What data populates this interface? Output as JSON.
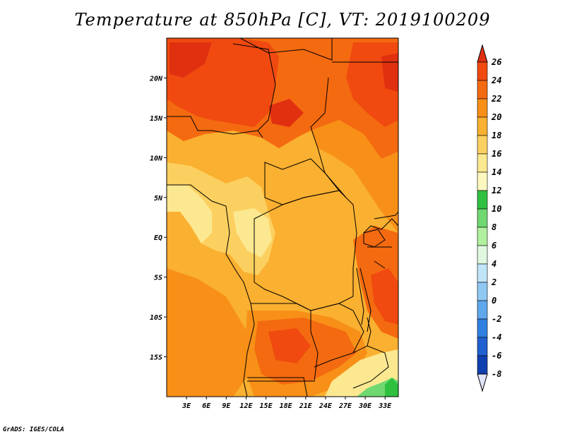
{
  "title": "Temperature at 850hPa [C], VT: 2019100209",
  "credit": "GrADS: IGES/COLA",
  "map": {
    "lon_range": [
      0,
      35
    ],
    "lat_range": [
      -20,
      25
    ],
    "lon_ticks": [
      "3E",
      "6E",
      "9E",
      "12E",
      "15E",
      "18E",
      "21E",
      "24E",
      "27E",
      "30E",
      "33E"
    ],
    "lon_values": [
      3,
      6,
      9,
      12,
      15,
      18,
      21,
      24,
      27,
      30,
      33
    ],
    "lat_ticks": [
      "20N",
      "15N",
      "10N",
      "5N",
      "EQ",
      "5S",
      "10S",
      "15S"
    ],
    "lat_values": [
      20,
      15,
      10,
      5,
      0,
      -5,
      -10,
      -15
    ]
  },
  "colorbar": {
    "labels": [
      "26",
      "24",
      "22",
      "20",
      "18",
      "16",
      "14",
      "12",
      "10",
      "8",
      "6",
      "4",
      "2",
      "0",
      "-2",
      "-4",
      "-6",
      "-8"
    ],
    "colors": [
      "#e03010",
      "#f04a10",
      "#f46a10",
      "#f89018",
      "#fab030",
      "#fcd060",
      "#fce890",
      "#fcf8c0",
      "#30c040",
      "#70d870",
      "#b0f0a0",
      "#e0f8e0",
      "#c0e4f8",
      "#90c8f4",
      "#60a8ec",
      "#3080e0",
      "#2060d0",
      "#1040b0",
      "#082080",
      "#000860"
    ],
    "over_color": "#e03010",
    "under_color": "#e0e4f8"
  }
}
